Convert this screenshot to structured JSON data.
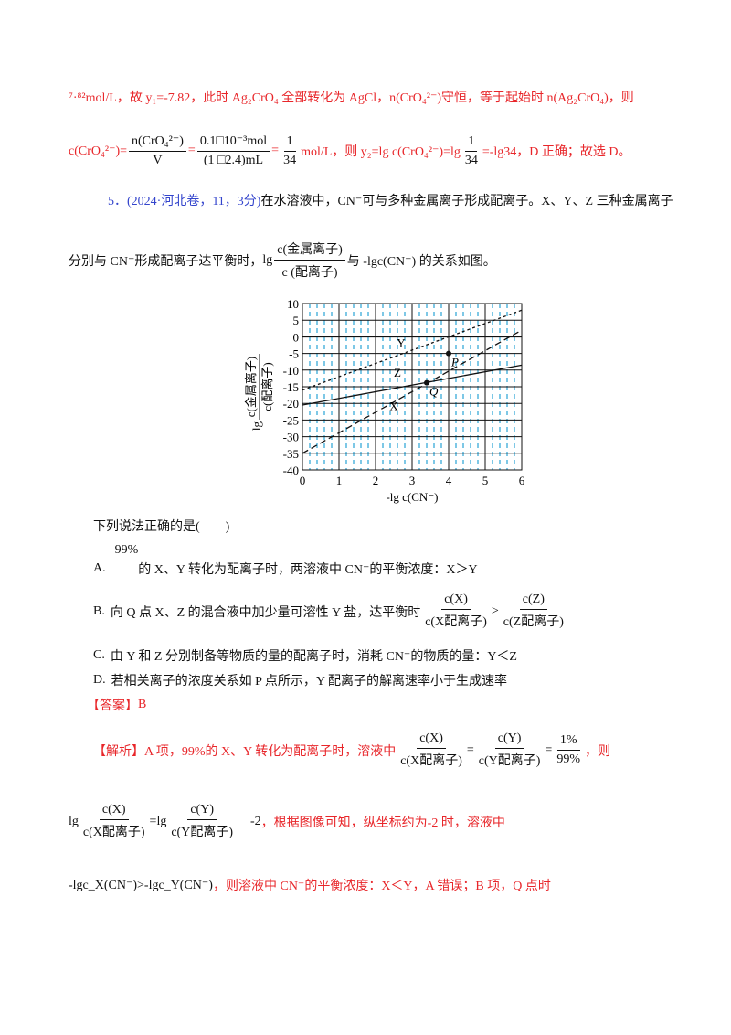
{
  "solution_prev": {
    "line1": "⁷·⁸²mol/L，故 y₁=-7.82，此时 Ag₂CrO₄ 全部转化为 AgCl，n(CrO₄²⁻)守恒，等于起始时 n(Ag₂CrO₄)，则",
    "line2_lhs": "c(CrO₄²⁻)=",
    "frac1_num": "n(CrO₄²⁻)",
    "frac1_den": "V",
    "frac2_num": "0.1□10⁻³mol",
    "frac2_den": "(1 □2.4)mL",
    "frac3_num": "1",
    "frac3_den": "34",
    "line2_mid": "mol/L，则 y₂=lg c(CrO₄²⁻)=lg",
    "line2_end": "=-lg34，D 正确；故选 D。"
  },
  "question": {
    "source": "5．(2024·河北卷，11，3分)",
    "stem1": "在水溶液中，CN⁻可与多种金属离子形成配离子。X、Y、Z 三种金属离子",
    "stem2a": "分别与 CN⁻形成配离子达平衡时，",
    "stem2_lg": "lg",
    "stem2_num": "c(金属离子)",
    "stem2_den": "c (配离子)",
    "stem2b": "与 -lgc(CN⁻) 的关系如图。",
    "prompt": "下列说法正确的是(　　)",
    "options": [
      {
        "label": "A.",
        "sup": "99%",
        "text": "的 X、Y 转化为配离子时，两溶液中 CN⁻的平衡浓度：X＞Y"
      },
      {
        "label": "B.",
        "text": "向 Q 点 X、Z 的混合液中加少量可溶性 Y 盐，达平衡时",
        "f1_num": "c(X)",
        "f1_den": "c(X配离子)",
        "op": ">",
        "f2_num": "c(Z)",
        "f2_den": "c(Z配离子)"
      },
      {
        "label": "C.",
        "text": "由 Y 和 Z 分别制备等物质的量的配离子时，消耗 CN⁻的物质的量：Y＜Z"
      },
      {
        "label": "D.",
        "text": "若相关离子的浓度关系如 P 点所示，Y 配离子的解离速率小于生成速率"
      }
    ]
  },
  "answer": {
    "label": "【答案】",
    "value": "B"
  },
  "analysis": {
    "label": "【解析】",
    "l1": "A 项，99%的 X、Y 转化为配离子时，溶液中",
    "f_x_num": "c(X)",
    "f_x_den": "c(X配离子)",
    "f_y_num": "c(Y)",
    "f_y_den": "c(Y配离子)",
    "f_p_num": "1%",
    "f_p_den": "99%",
    "l1_end": "，则",
    "l2_lg": "lg",
    "l2_eq": "=lg",
    "l2_val": "-2",
    "l2_end": "，根据图像可知，纵坐标约为-2 时，溶液中",
    "l3_math": "-lgc_X(CN⁻)>-lgc_Y(CN⁻)",
    "l3_end": "，则溶液中 CN⁻的平衡浓度：X＜Y，A 错误；B 项，Q 点时"
  },
  "chart_data": {
    "type": "line",
    "xlabel": "-lg c(CN⁻)",
    "ylabel_num": "c(金属离子)",
    "ylabel_den": "c(配离子)",
    "ylabel_prefix": "lg",
    "xlim": [
      0,
      6
    ],
    "ylim": [
      -40,
      10
    ],
    "xticks": [
      "0",
      "1",
      "2",
      "3",
      "4",
      "5",
      "6"
    ],
    "yticks": [
      "10",
      "5",
      "0",
      "-5",
      "-10",
      "-15",
      "-20",
      "-25",
      "-30",
      "-35",
      "-40"
    ],
    "grid": true,
    "series": [
      {
        "name": "X",
        "style": "dashed",
        "x": [
          0,
          6
        ],
        "y": [
          -35,
          2
        ]
      },
      {
        "name": "Y",
        "style": "dotted",
        "x": [
          0,
          6
        ],
        "y": [
          -16,
          8
        ]
      },
      {
        "name": "Z",
        "style": "solid",
        "x": [
          0,
          6
        ],
        "y": [
          -20.5,
          -8.5
        ]
      }
    ],
    "points": [
      {
        "name": "P",
        "x": 4,
        "y": -5
      },
      {
        "name": "Q",
        "x": 3.4,
        "y": -13.8
      }
    ],
    "colors": {
      "minor_grid": "#29a3d6",
      "major_grid": "#111111"
    }
  }
}
